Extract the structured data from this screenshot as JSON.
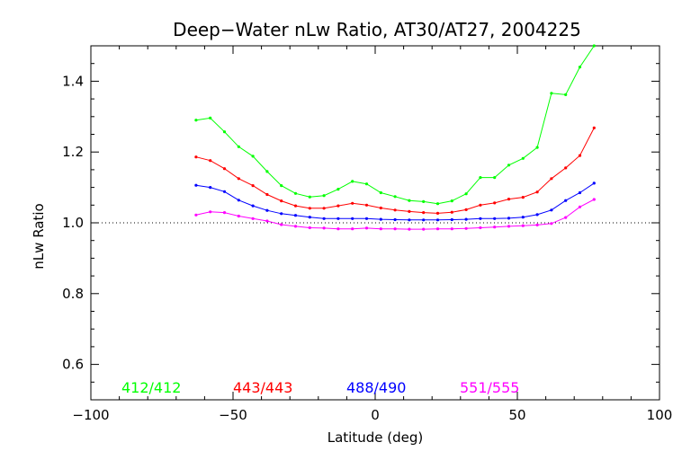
{
  "chart_data": {
    "type": "line",
    "title": "Deep−Water nLw Ratio, AT30/AT27, 2004225",
    "xlabel": "Latitude (deg)",
    "ylabel": "nLw Ratio",
    "xlim": [
      -100,
      100
    ],
    "ylim": [
      0.5,
      1.5
    ],
    "xticks": [
      -100,
      -50,
      0,
      50,
      100
    ],
    "xtick_labels": [
      "−100",
      "−50",
      "0",
      "50",
      "100"
    ],
    "yticks": [
      0.6,
      0.8,
      1.0,
      1.2,
      1.4
    ],
    "ytick_labels": [
      "0.6",
      "0.8",
      "1.0",
      "1.2",
      "1.4"
    ],
    "reference_line": {
      "y": 1.0,
      "style": "dotted"
    },
    "grid": false,
    "legend_placement": "bottom",
    "x": [
      -63,
      -58,
      -53,
      -48,
      -43,
      -38,
      -33,
      -28,
      -23,
      -18,
      -13,
      -8,
      -3,
      2,
      7,
      12,
      17,
      22,
      27,
      32,
      37,
      42,
      47,
      52,
      57,
      62,
      67,
      72,
      77
    ],
    "series": [
      {
        "name": "412/412",
        "color": "#00ff00",
        "values": [
          1.29,
          1.296,
          1.257,
          1.215,
          1.188,
          1.145,
          1.105,
          1.083,
          1.073,
          1.077,
          1.095,
          1.117,
          1.11,
          1.085,
          1.074,
          1.063,
          1.06,
          1.054,
          1.062,
          1.082,
          1.128,
          1.128,
          1.163,
          1.182,
          1.213,
          1.366,
          1.362,
          1.44,
          1.5
        ]
      },
      {
        "name": "443/443",
        "color": "#ff0000",
        "values": [
          1.186,
          1.176,
          1.153,
          1.125,
          1.105,
          1.08,
          1.062,
          1.048,
          1.041,
          1.041,
          1.048,
          1.055,
          1.05,
          1.042,
          1.036,
          1.032,
          1.029,
          1.027,
          1.03,
          1.037,
          1.05,
          1.056,
          1.067,
          1.072,
          1.087,
          1.125,
          1.155,
          1.19,
          1.268
        ]
      },
      {
        "name": "488/490",
        "color": "#0000ff",
        "values": [
          1.106,
          1.1,
          1.088,
          1.064,
          1.048,
          1.035,
          1.026,
          1.021,
          1.016,
          1.012,
          1.012,
          1.012,
          1.012,
          1.01,
          1.009,
          1.008,
          1.008,
          1.008,
          1.009,
          1.01,
          1.012,
          1.012,
          1.013,
          1.016,
          1.023,
          1.036,
          1.063,
          1.085,
          1.112
        ]
      },
      {
        "name": "551/555",
        "color": "#ff00ff",
        "values": [
          1.022,
          1.031,
          1.029,
          1.019,
          1.012,
          1.005,
          0.995,
          0.99,
          0.986,
          0.985,
          0.983,
          0.983,
          0.985,
          0.983,
          0.983,
          0.982,
          0.982,
          0.983,
          0.983,
          0.984,
          0.986,
          0.988,
          0.99,
          0.992,
          0.994,
          0.998,
          1.015,
          1.045,
          1.066
        ]
      }
    ]
  }
}
